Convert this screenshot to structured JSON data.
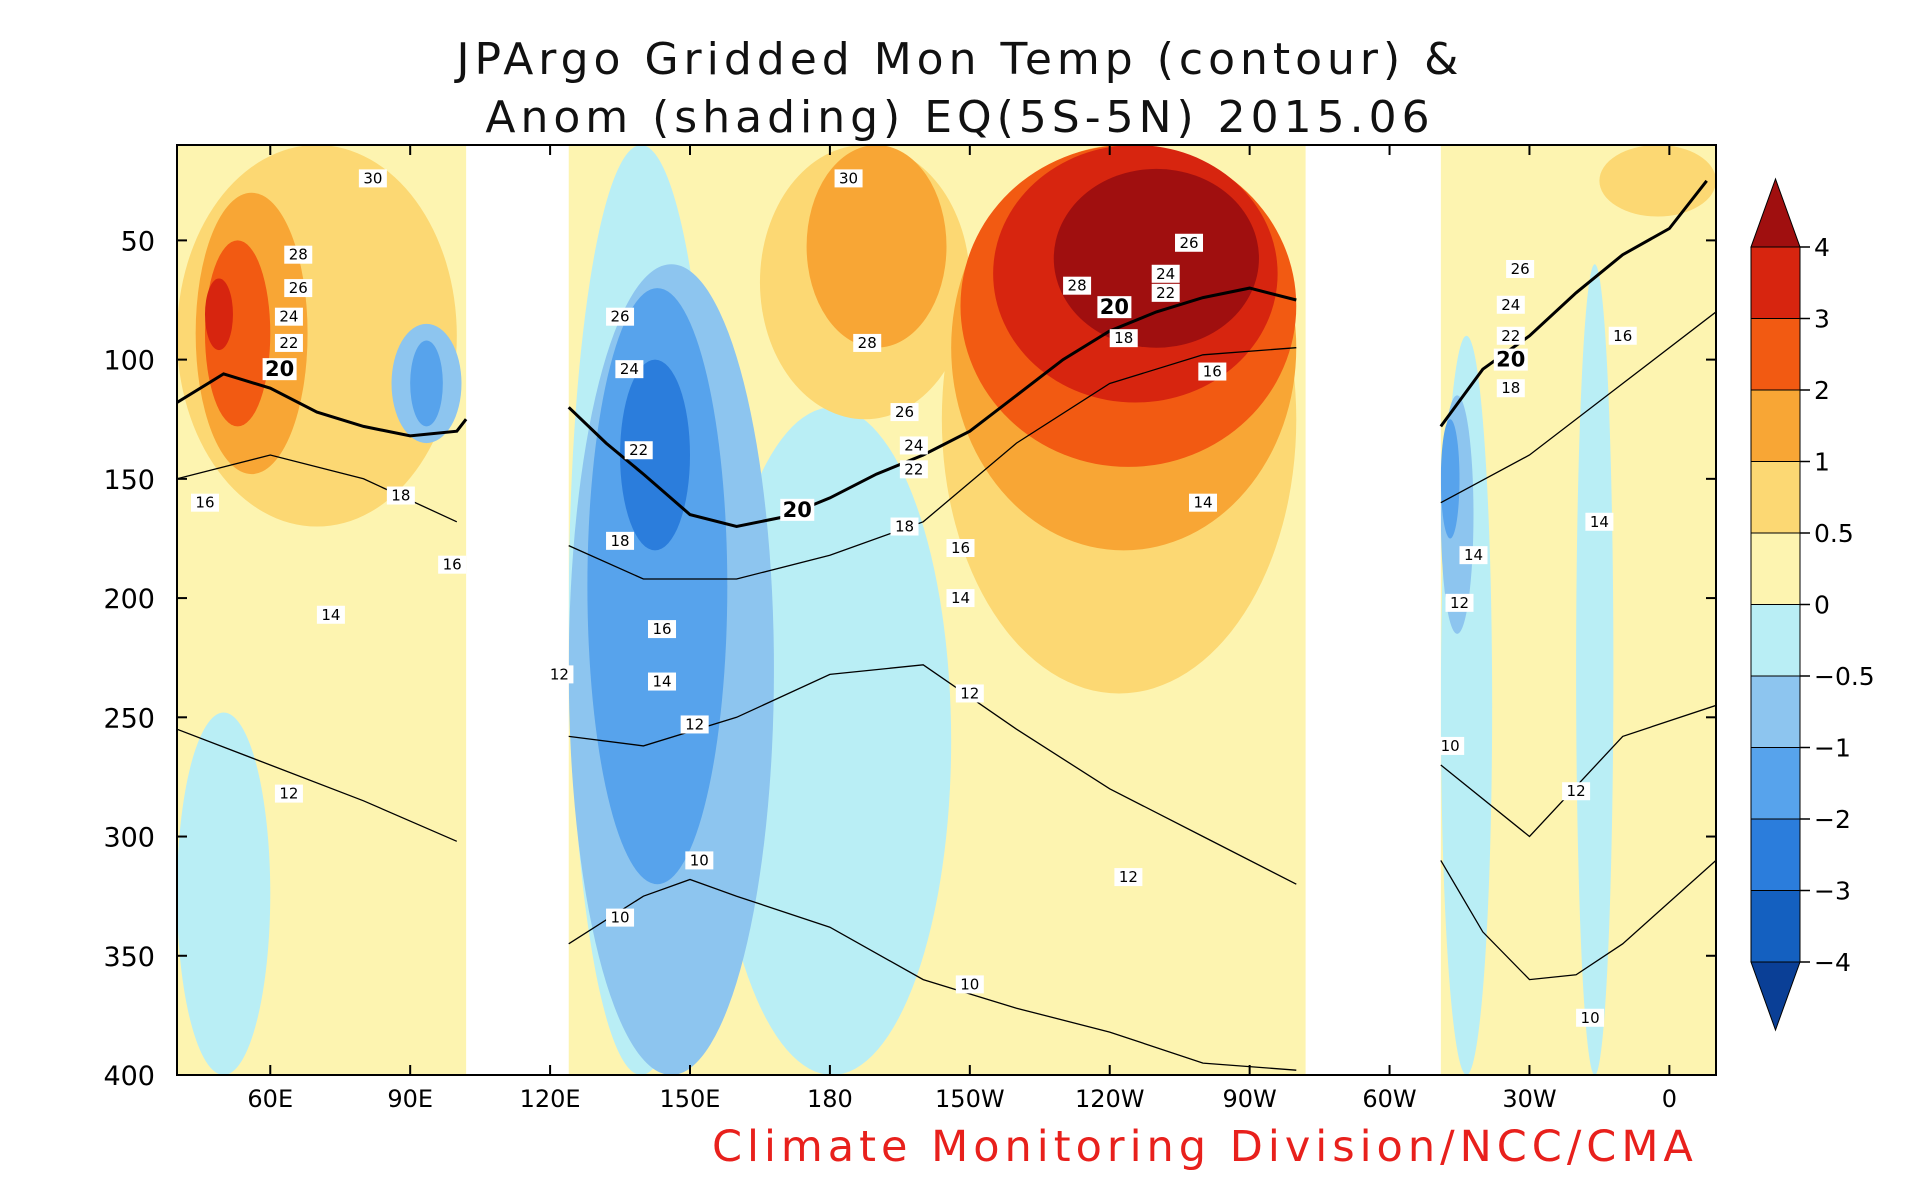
{
  "chart_data": {
    "type": "heatmap",
    "title_lines": [
      "JPArgo Gridded Mon Temp (contour) &",
      "Anom (shading) EQ(5S-5N) 2015.06"
    ],
    "credit": "Climate Monitoring Division/NCC/CMA",
    "x_axis": {
      "range": [
        40,
        370
      ],
      "ticks": [
        {
          "value": 60,
          "label": "60E"
        },
        {
          "value": 90,
          "label": "90E"
        },
        {
          "value": 120,
          "label": "120E"
        },
        {
          "value": 150,
          "label": "150E"
        },
        {
          "value": 180,
          "label": "180"
        },
        {
          "value": 210,
          "label": "150W"
        },
        {
          "value": 240,
          "label": "120W"
        },
        {
          "value": 270,
          "label": "90W"
        },
        {
          "value": 300,
          "label": "60W"
        },
        {
          "value": 330,
          "label": "30W"
        },
        {
          "value": 360,
          "label": "0"
        }
      ]
    },
    "y_axis": {
      "range": [
        10,
        400
      ],
      "inverted": true,
      "ticks": [
        50,
        100,
        150,
        200,
        250,
        300,
        350,
        400
      ]
    },
    "missing_longitude_bands": [
      [
        102,
        124
      ],
      [
        282,
        311
      ]
    ],
    "colorbar": {
      "levels": [
        "4",
        "3",
        "2",
        "1",
        "0.5",
        "0",
        "−0.5",
        "−1",
        "−2",
        "−3",
        "−4"
      ],
      "colors": [
        "#a00f0f",
        "#d7250f",
        "#f25a12",
        "#f8a635",
        "#fcd873",
        "#fdf4b0",
        "#b9eef5",
        "#8dc5ef",
        "#57a3ec",
        "#2b7ddc",
        "#1460c0",
        "#0a3f96"
      ],
      "extend": "both"
    },
    "anomaly_regions": [
      {
        "value": 0.5,
        "x": [
          40,
          100
        ],
        "y": [
          10,
          170
        ]
      },
      {
        "value": 1,
        "x": [
          44,
          68
        ],
        "y": [
          30,
          148
        ]
      },
      {
        "value": 2,
        "x": [
          46,
          60
        ],
        "y": [
          50,
          128
        ]
      },
      {
        "value": 3,
        "x": [
          46,
          52
        ],
        "y": [
          66,
          96
        ]
      },
      {
        "value": -0.5,
        "x": [
          40,
          60
        ],
        "y": [
          248,
          400
        ]
      },
      {
        "value": -1,
        "x": [
          86,
          101
        ],
        "y": [
          85,
          135
        ]
      },
      {
        "value": -2,
        "x": [
          90,
          97
        ],
        "y": [
          92,
          128
        ]
      },
      {
        "value": -0.5,
        "x": [
          124,
          155
        ],
        "y": [
          10,
          400
        ]
      },
      {
        "value": -0.5,
        "x": [
          155,
          206
        ],
        "y": [
          120,
          400
        ]
      },
      {
        "value": -1,
        "x": [
          124,
          168
        ],
        "y": [
          60,
          400
        ]
      },
      {
        "value": -2,
        "x": [
          128,
          158
        ],
        "y": [
          70,
          320
        ]
      },
      {
        "value": -3,
        "x": [
          135,
          150
        ],
        "y": [
          100,
          180
        ]
      },
      {
        "value": 0.5,
        "x": [
          165,
          210
        ],
        "y": [
          10,
          125
        ]
      },
      {
        "value": 1,
        "x": [
          175,
          205
        ],
        "y": [
          10,
          95
        ]
      },
      {
        "value": 0.5,
        "x": [
          204,
          280
        ],
        "y": [
          10,
          240
        ]
      },
      {
        "value": 1,
        "x": [
          206,
          280
        ],
        "y": [
          10,
          180
        ]
      },
      {
        "value": 2,
        "x": [
          208,
          280
        ],
        "y": [
          10,
          145
        ]
      },
      {
        "value": 3,
        "x": [
          215,
          276
        ],
        "y": [
          10,
          118
        ]
      },
      {
        "value": 4,
        "x": [
          228,
          272
        ],
        "y": [
          20,
          95
        ]
      },
      {
        "value": -0.5,
        "x": [
          311,
          322
        ],
        "y": [
          90,
          400
        ]
      },
      {
        "value": -1,
        "x": [
          311,
          318
        ],
        "y": [
          115,
          215
        ]
      },
      {
        "value": -2,
        "x": [
          311,
          315
        ],
        "y": [
          125,
          175
        ]
      },
      {
        "value": 0.5,
        "x": [
          345,
          370
        ],
        "y": [
          10,
          40
        ]
      },
      {
        "value": -0.5,
        "x": [
          340,
          348
        ],
        "y": [
          60,
          400
        ]
      }
    ],
    "contours": [
      {
        "level": 20,
        "bold": true,
        "points": [
          [
            40,
            118
          ],
          [
            50,
            106
          ],
          [
            60,
            112
          ],
          [
            70,
            122
          ],
          [
            80,
            128
          ],
          [
            90,
            132
          ],
          [
            100,
            130
          ],
          [
            102,
            125
          ],
          [
            124,
            120
          ],
          [
            132,
            135
          ],
          [
            140,
            148
          ],
          [
            150,
            165
          ],
          [
            160,
            170
          ],
          [
            170,
            166
          ],
          [
            180,
            158
          ],
          [
            190,
            148
          ],
          [
            200,
            140
          ],
          [
            210,
            130
          ],
          [
            220,
            115
          ],
          [
            230,
            100
          ],
          [
            240,
            88
          ],
          [
            250,
            80
          ],
          [
            260,
            74
          ],
          [
            270,
            70
          ],
          [
            280,
            75
          ],
          [
            311,
            128
          ],
          [
            320,
            104
          ],
          [
            330,
            90
          ],
          [
            340,
            72
          ],
          [
            350,
            56
          ],
          [
            360,
            45
          ],
          [
            368,
            25
          ]
        ]
      },
      {
        "level": 16,
        "bold": false,
        "points": [
          [
            40,
            150
          ],
          [
            60,
            140
          ],
          [
            80,
            150
          ],
          [
            100,
            168
          ],
          [
            124,
            178
          ],
          [
            140,
            192
          ],
          [
            160,
            192
          ],
          [
            180,
            182
          ],
          [
            200,
            168
          ],
          [
            220,
            135
          ],
          [
            240,
            110
          ],
          [
            260,
            98
          ],
          [
            280,
            95
          ],
          [
            311,
            160
          ],
          [
            330,
            140
          ],
          [
            350,
            110
          ],
          [
            370,
            80
          ]
        ]
      },
      {
        "level": 12,
        "bold": false,
        "points": [
          [
            40,
            255
          ],
          [
            60,
            270
          ],
          [
            80,
            285
          ],
          [
            100,
            302
          ],
          [
            124,
            258
          ],
          [
            140,
            262
          ],
          [
            160,
            250
          ],
          [
            180,
            232
          ],
          [
            200,
            228
          ],
          [
            220,
            255
          ],
          [
            240,
            280
          ],
          [
            260,
            300
          ],
          [
            280,
            320
          ],
          [
            311,
            270
          ],
          [
            330,
            300
          ],
          [
            350,
            258
          ],
          [
            370,
            245
          ]
        ]
      },
      {
        "level": 10,
        "bold": false,
        "points": [
          [
            124,
            345
          ],
          [
            140,
            325
          ],
          [
            150,
            318
          ],
          [
            160,
            325
          ],
          [
            180,
            338
          ],
          [
            200,
            360
          ],
          [
            220,
            372
          ],
          [
            240,
            382
          ],
          [
            260,
            395
          ],
          [
            280,
            398
          ],
          [
            311,
            310
          ],
          [
            320,
            340
          ],
          [
            330,
            360
          ],
          [
            340,
            358
          ],
          [
            350,
            345
          ],
          [
            370,
            310
          ]
        ]
      }
    ],
    "contour_labels": [
      {
        "text": "30",
        "x": 82,
        "y": 24
      },
      {
        "text": "28",
        "x": 66,
        "y": 56
      },
      {
        "text": "26",
        "x": 66,
        "y": 70
      },
      {
        "text": "24",
        "x": 64,
        "y": 82
      },
      {
        "text": "22",
        "x": 64,
        "y": 93
      },
      {
        "text": "20",
        "x": 62,
        "y": 104,
        "bold": true
      },
      {
        "text": "16",
        "x": 46,
        "y": 160
      },
      {
        "text": "18",
        "x": 88,
        "y": 157
      },
      {
        "text": "16",
        "x": 99,
        "y": 186
      },
      {
        "text": "14",
        "x": 73,
        "y": 207
      },
      {
        "text": "12",
        "x": 64,
        "y": 282
      },
      {
        "text": "30",
        "x": 184,
        "y": 24
      },
      {
        "text": "26",
        "x": 135,
        "y": 82
      },
      {
        "text": "24",
        "x": 137,
        "y": 104
      },
      {
        "text": "28",
        "x": 188,
        "y": 93
      },
      {
        "text": "22",
        "x": 139,
        "y": 138
      },
      {
        "text": "18",
        "x": 135,
        "y": 176
      },
      {
        "text": "16",
        "x": 144,
        "y": 213
      },
      {
        "text": "12",
        "x": 122,
        "y": 232
      },
      {
        "text": "14",
        "x": 144,
        "y": 235
      },
      {
        "text": "12",
        "x": 151,
        "y": 253
      },
      {
        "text": "10",
        "x": 135,
        "y": 334
      },
      {
        "text": "10",
        "x": 152,
        "y": 310
      },
      {
        "text": "20",
        "x": 173,
        "y": 163,
        "bold": true
      },
      {
        "text": "26",
        "x": 196,
        "y": 122
      },
      {
        "text": "24",
        "x": 198,
        "y": 136
      },
      {
        "text": "22",
        "x": 198,
        "y": 146
      },
      {
        "text": "18",
        "x": 196,
        "y": 170
      },
      {
        "text": "16",
        "x": 208,
        "y": 179
      },
      {
        "text": "14",
        "x": 208,
        "y": 200
      },
      {
        "text": "12",
        "x": 210,
        "y": 240
      },
      {
        "text": "10",
        "x": 210,
        "y": 362
      },
      {
        "text": "28",
        "x": 233,
        "y": 69
      },
      {
        "text": "20",
        "x": 241,
        "y": 78,
        "bold": true
      },
      {
        "text": "18",
        "x": 243,
        "y": 91
      },
      {
        "text": "26",
        "x": 257,
        "y": 51
      },
      {
        "text": "24",
        "x": 252,
        "y": 64
      },
      {
        "text": "22",
        "x": 252,
        "y": 72
      },
      {
        "text": "16",
        "x": 262,
        "y": 105
      },
      {
        "text": "14",
        "x": 260,
        "y": 160
      },
      {
        "text": "12",
        "x": 244,
        "y": 317
      },
      {
        "text": "26",
        "x": 328,
        "y": 62
      },
      {
        "text": "24",
        "x": 326,
        "y": 77
      },
      {
        "text": "22",
        "x": 326,
        "y": 90
      },
      {
        "text": "20",
        "x": 326,
        "y": 100,
        "bold": true
      },
      {
        "text": "18",
        "x": 326,
        "y": 112
      },
      {
        "text": "16",
        "x": 350,
        "y": 90
      },
      {
        "text": "14",
        "x": 318,
        "y": 182
      },
      {
        "text": "14",
        "x": 345,
        "y": 168
      },
      {
        "text": "12",
        "x": 315,
        "y": 202
      },
      {
        "text": "10",
        "x": 313,
        "y": 262
      },
      {
        "text": "12",
        "x": 340,
        "y": 281
      },
      {
        "text": "10",
        "x": 343,
        "y": 376
      }
    ]
  }
}
